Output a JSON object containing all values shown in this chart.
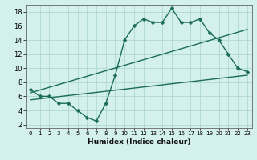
{
  "xlabel": "Humidex (Indice chaleur)",
  "bg_color": "#d4f0ec",
  "grid_color": "#aed8d0",
  "line_color": "#1a6b5a",
  "spine_color": "#666666",
  "xlim": [
    -0.5,
    23.5
  ],
  "ylim": [
    1.5,
    19
  ],
  "xticks": [
    0,
    1,
    2,
    3,
    4,
    5,
    6,
    7,
    8,
    9,
    10,
    11,
    12,
    13,
    14,
    15,
    16,
    17,
    18,
    19,
    20,
    21,
    22,
    23
  ],
  "yticks": [
    2,
    4,
    6,
    8,
    10,
    12,
    14,
    16,
    18
  ],
  "line1_x": [
    0,
    1,
    2,
    3,
    4,
    5,
    6,
    7,
    8,
    9,
    10,
    11,
    12,
    13,
    14,
    15,
    16,
    17,
    18,
    19,
    20,
    21,
    22,
    23
  ],
  "line1_y": [
    7,
    6,
    6,
    5,
    5,
    4,
    3,
    2.5,
    5,
    9,
    14,
    16,
    17,
    16.5,
    16.5,
    18.5,
    16.5,
    16.5,
    17,
    15,
    14,
    12,
    10,
    9.5
  ],
  "line2_x": [
    0,
    23
  ],
  "line2_y": [
    6.5,
    15.5
  ],
  "line3_x": [
    0,
    23
  ],
  "line3_y": [
    5.5,
    9
  ],
  "marker_size": 2.5,
  "line_width": 1.0,
  "xlabel_fontsize": 6.5,
  "xtick_fontsize": 5.0,
  "ytick_fontsize": 6.0
}
